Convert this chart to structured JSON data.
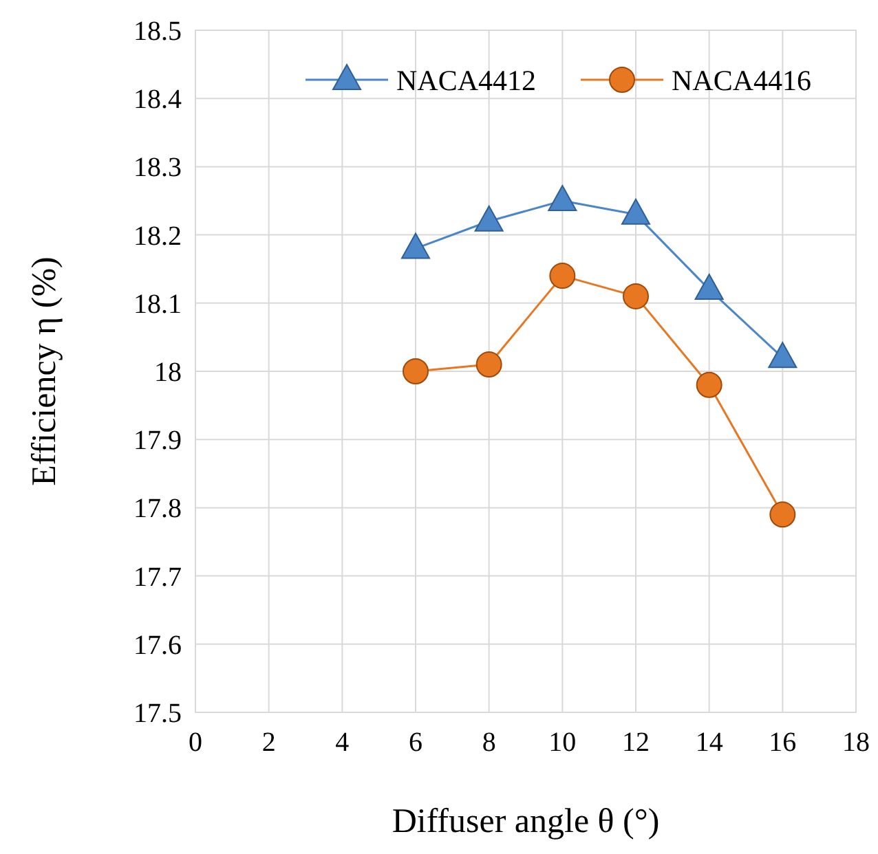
{
  "chart_data": {
    "type": "line",
    "xlabel": "Diffuser angle θ (°)",
    "ylabel": "Efficiency η (%)",
    "x": [
      6,
      8,
      10,
      12,
      14,
      16
    ],
    "series": [
      {
        "name": "NACA4412",
        "color": "#4a86c8",
        "marker": "triangle",
        "values": [
          18.18,
          18.22,
          18.25,
          18.23,
          18.12,
          18.02
        ]
      },
      {
        "name": "NACA4416",
        "color": "#e87722",
        "marker": "circle",
        "values": [
          18.0,
          18.01,
          18.14,
          18.11,
          17.98,
          17.79
        ]
      }
    ],
    "xlim": [
      0,
      18
    ],
    "xticks": [
      0,
      2,
      4,
      6,
      8,
      10,
      12,
      14,
      16,
      18
    ],
    "ylim": [
      17.5,
      18.5
    ],
    "yticks": [
      {
        "value": 17.5,
        "label": "17.5"
      },
      {
        "value": 17.6,
        "label": "17.6"
      },
      {
        "value": 17.7,
        "label": "17.7"
      },
      {
        "value": 17.8,
        "label": "17.8"
      },
      {
        "value": 17.9,
        "label": "17.9"
      },
      {
        "value": 18,
        "label": "18"
      },
      {
        "value": 18.1,
        "label": "18.1"
      },
      {
        "value": 18.2,
        "label": "18.2"
      },
      {
        "value": 18.3,
        "label": "18.3"
      },
      {
        "value": 18.4,
        "label": "18.4"
      },
      {
        "value": 18.5,
        "label": "18.5"
      }
    ],
    "grid": true,
    "legend": "top right"
  }
}
